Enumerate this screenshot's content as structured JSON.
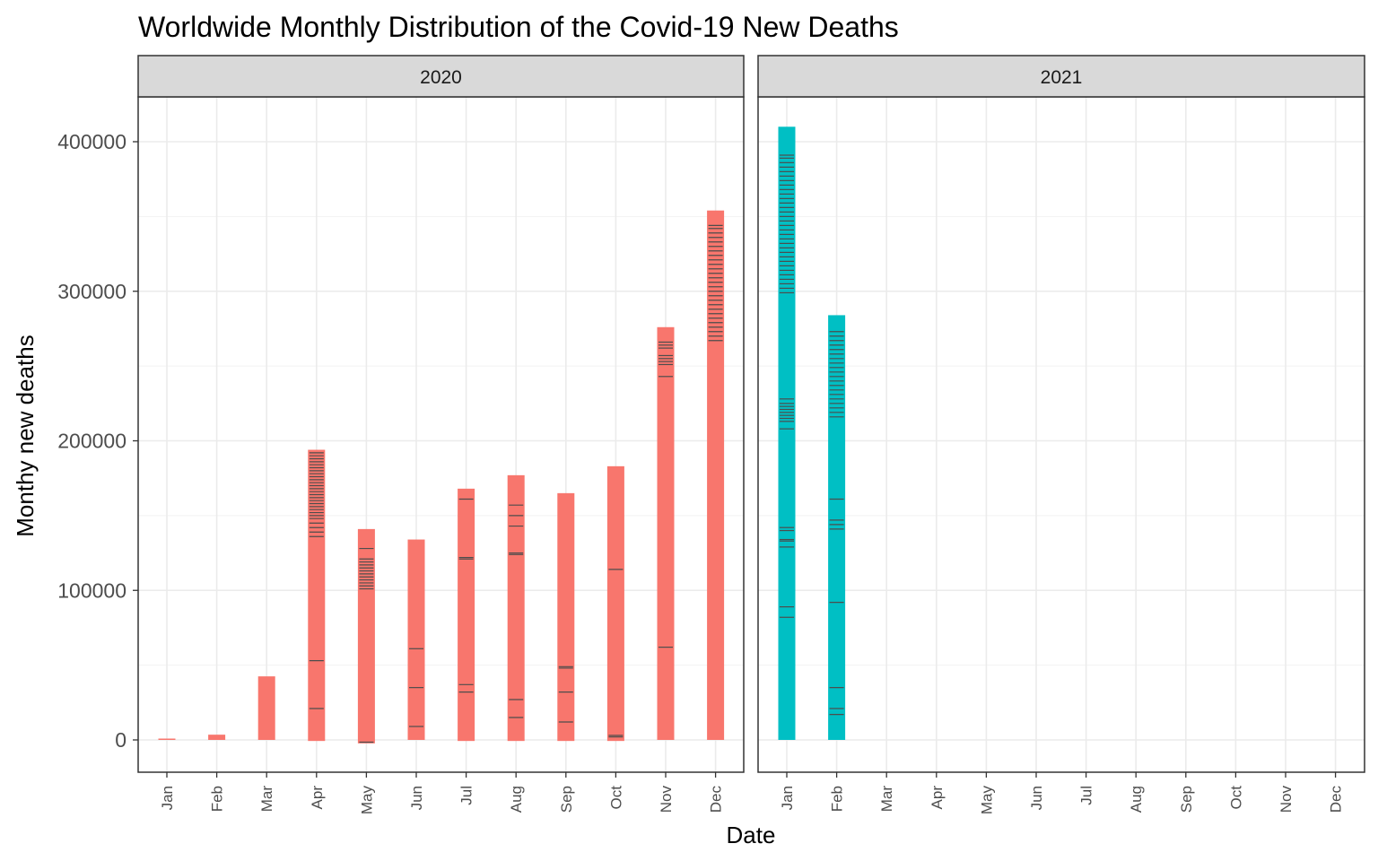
{
  "chart_data": {
    "type": "bar",
    "title": "Worldwide Monthly Distribution of the Covid-19 New Deaths",
    "xlabel": "Date",
    "ylabel": "Monthy new deaths",
    "ylim": [
      -20000,
      425000
    ],
    "yticks": [
      0,
      100000,
      200000,
      300000,
      400000
    ],
    "ytick_labels": [
      "0",
      "100000",
      "200000",
      "300000",
      "400000"
    ],
    "grid": true,
    "legend": "none",
    "categories": [
      "Jan",
      "Feb",
      "Mar",
      "Apr",
      "May",
      "Jun",
      "Jul",
      "Aug",
      "Sep",
      "Oct",
      "Nov",
      "Dec"
    ],
    "panels": [
      {
        "facet": "2020",
        "color": "#F8766D",
        "bars": [
          {
            "month": "Jan",
            "top": 900,
            "bottom": 0
          },
          {
            "month": "Feb",
            "top": 3500,
            "bottom": 0
          },
          {
            "month": "Mar",
            "top": 42500,
            "bottom": 0
          },
          {
            "month": "Apr",
            "top": 194000,
            "bottom": -700
          },
          {
            "month": "May",
            "top": 141000,
            "bottom": -2300
          },
          {
            "month": "Jun",
            "top": 134000,
            "bottom": 0
          },
          {
            "month": "Jul",
            "top": 168000,
            "bottom": -700
          },
          {
            "month": "Aug",
            "top": 177000,
            "bottom": -700
          },
          {
            "month": "Sep",
            "top": 165000,
            "bottom": -700
          },
          {
            "month": "Oct",
            "top": 183000,
            "bottom": -700
          },
          {
            "month": "Nov",
            "top": 276000,
            "bottom": 0
          },
          {
            "month": "Dec",
            "top": 354000,
            "bottom": 0
          }
        ],
        "daily_marks": [
          [],
          [],
          [],
          [
            21000,
            53000,
            136000,
            139000,
            142000,
            145000,
            148000,
            150000,
            152000,
            154000,
            156000,
            158000,
            160000,
            162000,
            164000,
            166000,
            168000,
            170000,
            172000,
            174000,
            176000,
            178000,
            180000,
            182000,
            184000,
            186000,
            188000,
            190000,
            192000
          ],
          [
            -1500,
            101000,
            103000,
            105000,
            107000,
            109000,
            111000,
            113000,
            115000,
            117000,
            119000,
            121000,
            128000
          ],
          [
            9000,
            35000,
            61000
          ],
          [
            32000,
            37000,
            121000,
            122000,
            161000
          ],
          [
            15000,
            27000,
            124000,
            125000,
            143000,
            150000,
            157000
          ],
          [
            12000,
            32000,
            48000,
            49000
          ],
          [
            2000,
            3000,
            114000
          ],
          [
            62000,
            243000,
            251000,
            253000,
            255000,
            257000,
            262000,
            264000,
            266000
          ],
          [
            267000,
            270000,
            273000,
            276000,
            279000,
            282000,
            285000,
            288000,
            291000,
            294000,
            297000,
            300000,
            303000,
            306000,
            309000,
            312000,
            315000,
            318000,
            321000,
            324000,
            327000,
            330000,
            333000,
            336000,
            339000,
            342000,
            344000
          ]
        ]
      },
      {
        "facet": "2021",
        "color": "#00BFC4",
        "bars": [
          {
            "month": "Jan",
            "top": 410000,
            "bottom": 0
          },
          {
            "month": "Feb",
            "top": 284000,
            "bottom": 0
          }
        ],
        "daily_marks": [
          [
            82000,
            89000,
            129000,
            133000,
            134000,
            140000,
            142000,
            208000,
            213000,
            215000,
            217000,
            219000,
            221000,
            223000,
            225000,
            228000,
            299000,
            302000,
            305000,
            308000,
            311000,
            314000,
            317000,
            320000,
            323000,
            326000,
            329000,
            332000,
            335000,
            338000,
            341000,
            344000,
            347000,
            350000,
            353000,
            356000,
            359000,
            362000,
            365000,
            368000,
            371000,
            374000,
            377000,
            380000,
            383000,
            386000,
            389000,
            391000
          ],
          [
            17000,
            21000,
            35000,
            92000,
            141000,
            144000,
            147000,
            161000,
            216000,
            219000,
            222000,
            225000,
            228000,
            231000,
            234000,
            237000,
            240000,
            243000,
            246000,
            249000,
            252000,
            255000,
            258000,
            261000,
            264000,
            267000,
            270000,
            273000
          ]
        ]
      }
    ]
  }
}
